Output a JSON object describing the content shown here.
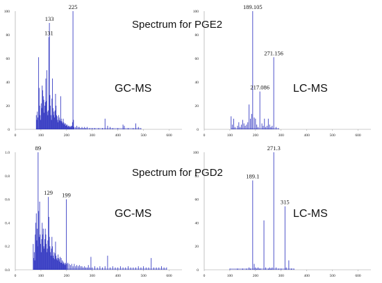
{
  "title_top": "Spectrum for PGE2",
  "title_bottom": "Spectrum for PGD2",
  "colors": {
    "stick": "#3a3fc4",
    "axis": "#9a9a9a"
  },
  "chart_data": [
    {
      "id": "pge2-gcms",
      "type": "bar",
      "method_label": "GC-MS",
      "xlim": [
        0,
        650
      ],
      "ylim": [
        0,
        100
      ],
      "xticks": [
        "0",
        "100",
        "200",
        "300",
        "400",
        "500",
        "600"
      ],
      "yticks": [
        "0",
        "20",
        "40",
        "60",
        "80",
        "100"
      ],
      "peaks": [
        [
          82,
          12
        ],
        [
          84,
          8
        ],
        [
          86,
          15
        ],
        [
          88,
          10
        ],
        [
          91,
          61
        ],
        [
          93,
          35
        ],
        [
          95,
          20
        ],
        [
          97,
          12
        ],
        [
          99,
          8
        ],
        [
          101,
          22
        ],
        [
          103,
          18
        ],
        [
          105,
          37
        ],
        [
          107,
          33
        ],
        [
          109,
          28
        ],
        [
          111,
          25
        ],
        [
          113,
          14
        ],
        [
          115,
          20
        ],
        [
          117,
          23
        ],
        [
          119,
          43
        ],
        [
          121,
          24
        ],
        [
          123,
          50
        ],
        [
          125,
          15
        ],
        [
          127,
          12
        ],
        [
          129,
          16
        ],
        [
          131,
          78
        ],
        [
          133,
          90
        ],
        [
          135,
          29
        ],
        [
          137,
          20
        ],
        [
          139,
          12
        ],
        [
          141,
          8
        ],
        [
          143,
          26
        ],
        [
          145,
          43
        ],
        [
          147,
          18
        ],
        [
          149,
          12
        ],
        [
          151,
          15
        ],
        [
          153,
          10
        ],
        [
          155,
          16
        ],
        [
          157,
          30
        ],
        [
          159,
          20
        ],
        [
          161,
          12
        ],
        [
          163,
          11
        ],
        [
          165,
          8
        ],
        [
          167,
          6
        ],
        [
          169,
          12
        ],
        [
          171,
          10
        ],
        [
          173,
          8
        ],
        [
          175,
          7
        ],
        [
          177,
          28
        ],
        [
          179,
          9
        ],
        [
          181,
          7
        ],
        [
          183,
          6
        ],
        [
          185,
          5
        ],
        [
          187,
          9
        ],
        [
          189,
          6
        ],
        [
          191,
          4
        ],
        [
          193,
          5
        ],
        [
          195,
          5
        ],
        [
          197,
          3
        ],
        [
          199,
          4
        ],
        [
          201,
          3
        ],
        [
          203,
          4
        ],
        [
          205,
          2
        ],
        [
          207,
          3
        ],
        [
          209,
          2
        ],
        [
          211,
          3
        ],
        [
          213,
          2
        ],
        [
          215,
          2
        ],
        [
          217,
          3
        ],
        [
          219,
          2
        ],
        [
          221,
          3
        ],
        [
          223,
          6
        ],
        [
          225,
          100
        ],
        [
          227,
          8
        ],
        [
          229,
          2
        ],
        [
          235,
          2
        ],
        [
          240,
          3
        ],
        [
          245,
          2
        ],
        [
          250,
          2
        ],
        [
          255,
          1
        ],
        [
          260,
          2
        ],
        [
          265,
          1
        ],
        [
          270,
          2
        ],
        [
          275,
          1
        ],
        [
          280,
          2
        ],
        [
          290,
          1
        ],
        [
          300,
          1
        ],
        [
          310,
          1
        ],
        [
          325,
          1
        ],
        [
          340,
          1
        ],
        [
          350,
          9
        ],
        [
          360,
          3
        ],
        [
          370,
          2
        ],
        [
          380,
          1
        ],
        [
          400,
          1
        ],
        [
          420,
          4
        ],
        [
          425,
          3
        ],
        [
          440,
          1
        ],
        [
          460,
          1
        ],
        [
          470,
          5
        ],
        [
          480,
          2
        ],
        [
          490,
          1
        ]
      ],
      "labels": [
        {
          "x": 225,
          "y": 100,
          "text": "225"
        },
        {
          "x": 133,
          "y": 90,
          "text": "133"
        },
        {
          "x": 131,
          "y": 78,
          "text": "131"
        }
      ]
    },
    {
      "id": "pge2-lcms",
      "type": "bar",
      "method_label": "LC-MS",
      "xlim": [
        0,
        650
      ],
      "ylim": [
        0,
        100
      ],
      "xticks": [
        "0",
        "100",
        "200",
        "300",
        "400",
        "500",
        "600"
      ],
      "yticks": [
        "0",
        "20",
        "40",
        "60",
        "80",
        "100"
      ],
      "peaks": [
        [
          105,
          11
        ],
        [
          110,
          4
        ],
        [
          115,
          9
        ],
        [
          120,
          2
        ],
        [
          130,
          3
        ],
        [
          135,
          6
        ],
        [
          140,
          2
        ],
        [
          145,
          4
        ],
        [
          150,
          8
        ],
        [
          155,
          5
        ],
        [
          160,
          3
        ],
        [
          165,
          4
        ],
        [
          170,
          6
        ],
        [
          175,
          21
        ],
        [
          180,
          9
        ],
        [
          185,
          13
        ],
        [
          189.105,
          100
        ],
        [
          195,
          10
        ],
        [
          200,
          9
        ],
        [
          205,
          4
        ],
        [
          210,
          2
        ],
        [
          217.086,
          32
        ],
        [
          225,
          5
        ],
        [
          230,
          3
        ],
        [
          235,
          9
        ],
        [
          240,
          2
        ],
        [
          245,
          3
        ],
        [
          250,
          9
        ],
        [
          255,
          4
        ],
        [
          260,
          2
        ],
        [
          265,
          3
        ],
        [
          271.156,
          61
        ],
        [
          280,
          2
        ],
        [
          290,
          1
        ]
      ],
      "labels": [
        {
          "x": 189.105,
          "y": 100,
          "text": "189.105"
        },
        {
          "x": 271.156,
          "y": 61,
          "text": "271.156"
        },
        {
          "x": 217.086,
          "y": 32,
          "text": "217.086"
        }
      ]
    },
    {
      "id": "pgd2-gcms",
      "type": "bar",
      "method_label": "GC-MS",
      "xlim": [
        0,
        650
      ],
      "ylim": [
        0,
        1.0
      ],
      "xticks": [
        "0",
        "100",
        "200",
        "300",
        "400",
        "500",
        "600"
      ],
      "yticks": [
        "0.0",
        "0.2",
        "0.4",
        "0.6",
        "0.8",
        "1.0"
      ],
      "peaks": [
        [
          70,
          0.22
        ],
        [
          72,
          0.1
        ],
        [
          74,
          0.15
        ],
        [
          76,
          0.08
        ],
        [
          78,
          0.3
        ],
        [
          80,
          0.4
        ],
        [
          82,
          0.48
        ],
        [
          84,
          0.25
        ],
        [
          86,
          0.35
        ],
        [
          88,
          0.2
        ],
        [
          89,
          1.0
        ],
        [
          91,
          0.5
        ],
        [
          93,
          0.28
        ],
        [
          95,
          0.58
        ],
        [
          97,
          0.3
        ],
        [
          99,
          0.22
        ],
        [
          101,
          0.15
        ],
        [
          103,
          0.26
        ],
        [
          105,
          0.4
        ],
        [
          107,
          0.3
        ],
        [
          109,
          0.35
        ],
        [
          111,
          0.2
        ],
        [
          113,
          0.18
        ],
        [
          115,
          0.26
        ],
        [
          117,
          0.35
        ],
        [
          119,
          0.3
        ],
        [
          121,
          0.22
        ],
        [
          123,
          0.15
        ],
        [
          125,
          0.18
        ],
        [
          127,
          0.25
        ],
        [
          129,
          0.62
        ],
        [
          131,
          0.45
        ],
        [
          133,
          0.28
        ],
        [
          135,
          0.2
        ],
        [
          137,
          0.15
        ],
        [
          139,
          0.12
        ],
        [
          141,
          0.18
        ],
        [
          143,
          0.28
        ],
        [
          145,
          0.2
        ],
        [
          147,
          0.12
        ],
        [
          149,
          0.1
        ],
        [
          151,
          0.15
        ],
        [
          153,
          0.09
        ],
        [
          155,
          0.14
        ],
        [
          157,
          0.24
        ],
        [
          159,
          0.12
        ],
        [
          161,
          0.09
        ],
        [
          163,
          0.1
        ],
        [
          165,
          0.08
        ],
        [
          167,
          0.13
        ],
        [
          169,
          0.1
        ],
        [
          171,
          0.09
        ],
        [
          173,
          0.07
        ],
        [
          175,
          0.11
        ],
        [
          177,
          0.06
        ],
        [
          179,
          0.1
        ],
        [
          181,
          0.06
        ],
        [
          183,
          0.08
        ],
        [
          185,
          0.05
        ],
        [
          187,
          0.07
        ],
        [
          189,
          0.06
        ],
        [
          191,
          0.05
        ],
        [
          193,
          0.04
        ],
        [
          195,
          0.06
        ],
        [
          197,
          0.05
        ],
        [
          199,
          0.6
        ],
        [
          201,
          0.05
        ],
        [
          205,
          0.06
        ],
        [
          210,
          0.05
        ],
        [
          215,
          0.04
        ],
        [
          220,
          0.05
        ],
        [
          225,
          0.03
        ],
        [
          230,
          0.05
        ],
        [
          235,
          0.03
        ],
        [
          240,
          0.04
        ],
        [
          245,
          0.03
        ],
        [
          250,
          0.04
        ],
        [
          255,
          0.03
        ],
        [
          260,
          0.03
        ],
        [
          265,
          0.02
        ],
        [
          270,
          0.03
        ],
        [
          275,
          0.02
        ],
        [
          280,
          0.02
        ],
        [
          285,
          0.04
        ],
        [
          290,
          0.02
        ],
        [
          295,
          0.11
        ],
        [
          300,
          0.02
        ],
        [
          310,
          0.03
        ],
        [
          320,
          0.02
        ],
        [
          330,
          0.03
        ],
        [
          340,
          0.02
        ],
        [
          350,
          0.03
        ],
        [
          360,
          0.12
        ],
        [
          370,
          0.02
        ],
        [
          380,
          0.03
        ],
        [
          390,
          0.02
        ],
        [
          400,
          0.02
        ],
        [
          410,
          0.03
        ],
        [
          420,
          0.02
        ],
        [
          430,
          0.02
        ],
        [
          440,
          0.03
        ],
        [
          450,
          0.02
        ],
        [
          460,
          0.02
        ],
        [
          470,
          0.02
        ],
        [
          480,
          0.03
        ],
        [
          490,
          0.02
        ],
        [
          500,
          0.03
        ],
        [
          510,
          0.02
        ],
        [
          520,
          0.02
        ],
        [
          530,
          0.1
        ],
        [
          540,
          0.02
        ],
        [
          550,
          0.02
        ],
        [
          560,
          0.02
        ],
        [
          570,
          0.03
        ],
        [
          580,
          0.02
        ],
        [
          590,
          0.02
        ]
      ],
      "labels": [
        {
          "x": 89,
          "y": 1.0,
          "text": "89"
        },
        {
          "x": 129,
          "y": 0.62,
          "text": "129"
        },
        {
          "x": 199,
          "y": 0.6,
          "text": "199"
        }
      ]
    },
    {
      "id": "pgd2-lcms",
      "type": "bar",
      "method_label": "LC-MS",
      "xlim": [
        0,
        650
      ],
      "ylim": [
        0,
        100
      ],
      "xticks": [
        "0",
        "100",
        "200",
        "300",
        "400",
        "500",
        "600"
      ],
      "yticks": [
        "0",
        "20",
        "40",
        "60",
        "80",
        "100"
      ],
      "peaks": [
        [
          100,
          1
        ],
        [
          130,
          1
        ],
        [
          150,
          1
        ],
        [
          165,
          1
        ],
        [
          175,
          2
        ],
        [
          180,
          1
        ],
        [
          189.1,
          76
        ],
        [
          195,
          5
        ],
        [
          200,
          2
        ],
        [
          205,
          1
        ],
        [
          210,
          2
        ],
        [
          215,
          1
        ],
        [
          220,
          1
        ],
        [
          233,
          42
        ],
        [
          240,
          2
        ],
        [
          250,
          1
        ],
        [
          255,
          2
        ],
        [
          260,
          1
        ],
        [
          265,
          2
        ],
        [
          271.3,
          100
        ],
        [
          280,
          2
        ],
        [
          290,
          1
        ],
        [
          300,
          1
        ],
        [
          315,
          54
        ],
        [
          320,
          2
        ],
        [
          330,
          8
        ],
        [
          340,
          1
        ],
        [
          350,
          1
        ]
      ],
      "labels": [
        {
          "x": 189.1,
          "y": 76,
          "text": "189.1"
        },
        {
          "x": 271.3,
          "y": 100,
          "text": "271.3"
        },
        {
          "x": 315,
          "y": 54,
          "text": "315"
        }
      ]
    }
  ]
}
